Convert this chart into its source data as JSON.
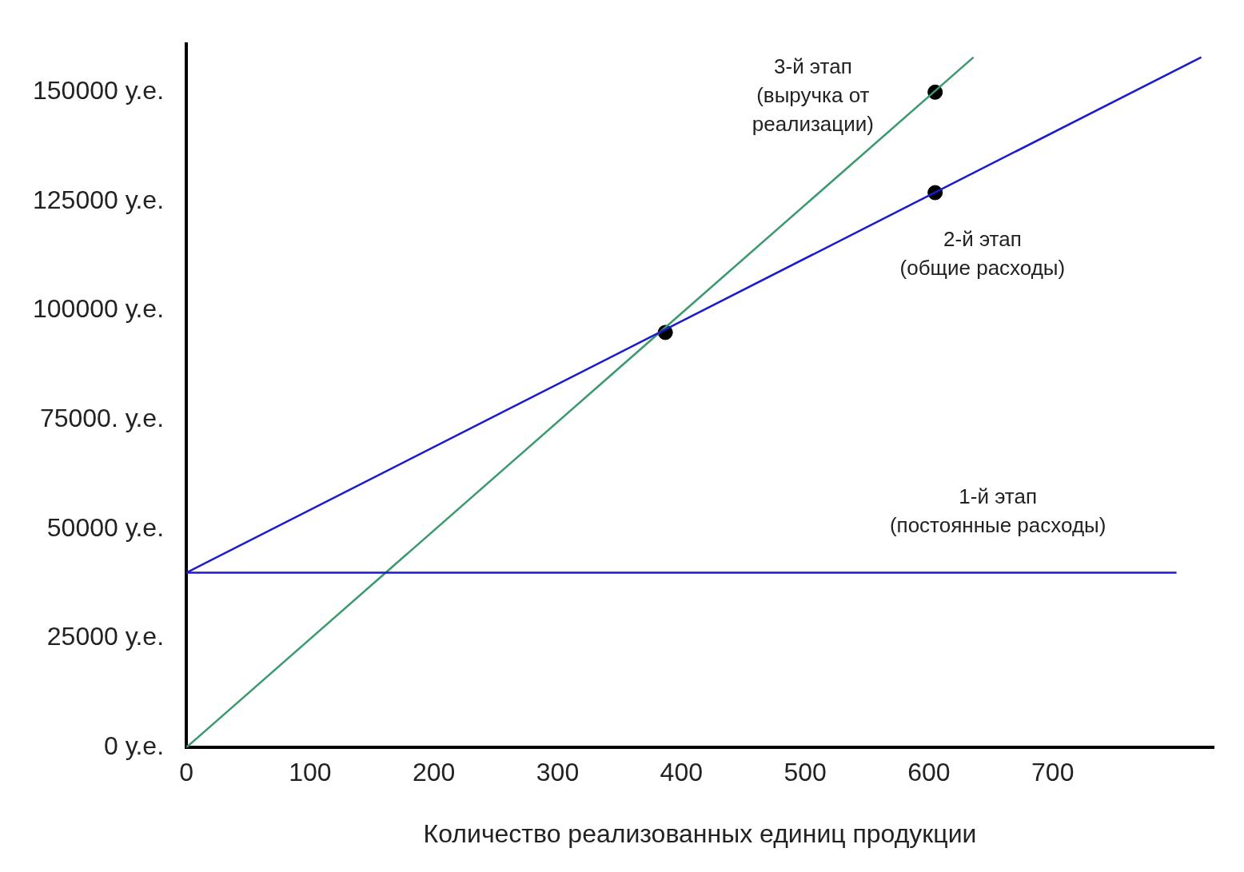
{
  "chart_data": {
    "type": "line",
    "xlabel": "Количество реализованных единиц продукции",
    "xlim": [
      0,
      830
    ],
    "xticks": [
      0,
      100,
      200,
      300,
      400,
      500,
      600,
      700
    ],
    "ylim": [
      0,
      161000
    ],
    "yticks": [
      {
        "value": 0,
        "label": "0 у.е."
      },
      {
        "value": 25000,
        "label": "25000 у.е."
      },
      {
        "value": 50000,
        "label": "50000 у.е."
      },
      {
        "value": 75000,
        "label": "75000. у.е."
      },
      {
        "value": 100000,
        "label": "100000 у.е."
      },
      {
        "value": 125000,
        "label": "125000 у.е."
      },
      {
        "value": 150000,
        "label": "150000 у.е."
      }
    ],
    "grid": false,
    "legend": false,
    "line_style": "solid",
    "series": [
      {
        "type": "line",
        "color": "#1a1ad0",
        "x": [
          0,
          800
        ],
        "values": [
          40000,
          40000
        ],
        "marker": "none"
      },
      {
        "type": "line",
        "color": "#1a1ad0",
        "x": [
          0,
          820
        ],
        "values": [
          40000,
          158000
        ],
        "marker": "none"
      },
      {
        "type": "line",
        "color": "#3a9a6e",
        "x": [
          0,
          636
        ],
        "values": [
          0,
          158000
        ],
        "marker": "none"
      },
      {
        "type": "scatter",
        "color": "#000000",
        "x": [
          387,
          605,
          605
        ],
        "values": [
          95000,
          150000,
          127000
        ],
        "marker": "circle"
      }
    ],
    "annotations": [
      "3-й этап\n(выручка от\nреализации)",
      "2-й этап\n(общие расходы)",
      "1-й этап\n(постоянные расходы)"
    ]
  }
}
